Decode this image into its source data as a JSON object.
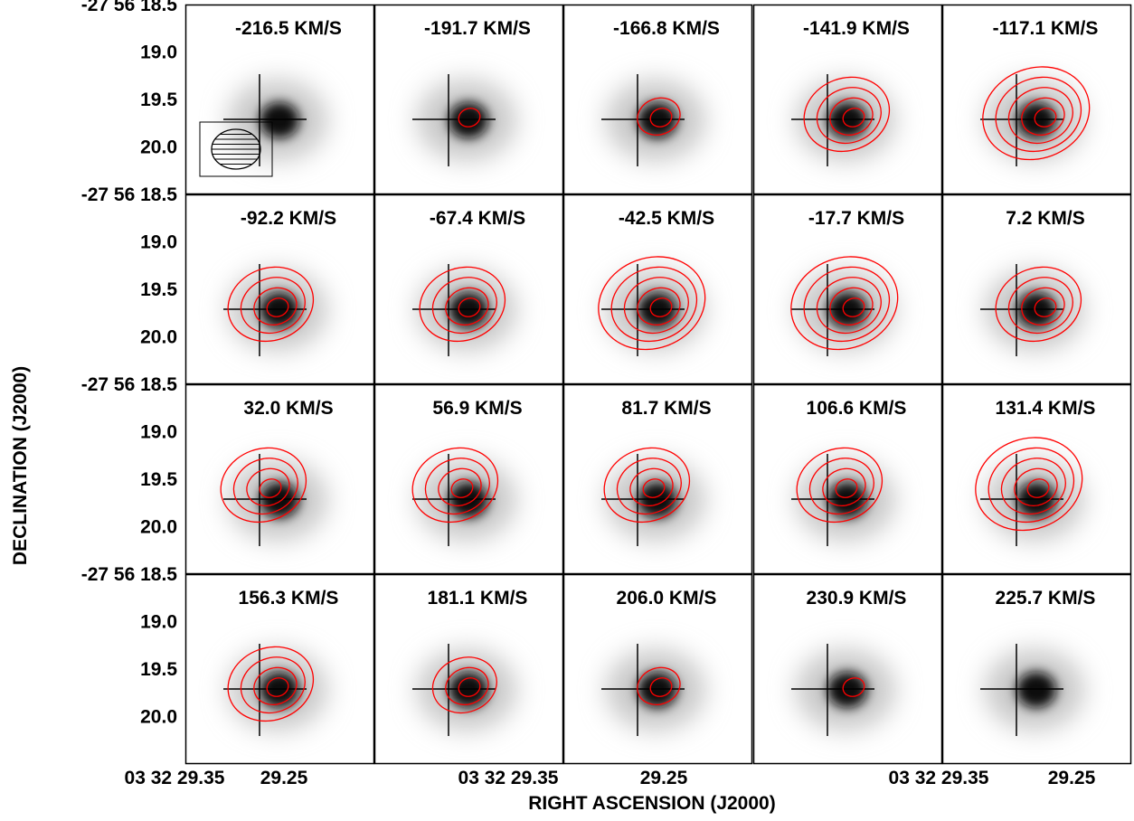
{
  "chart_data": {
    "type": "channel-map",
    "xlabel": "RIGHT ASCENSION (J2000)",
    "ylabel": "DECLINATION (J2000)",
    "x_tick_labels": [
      "03 32 29.35",
      "29.25"
    ],
    "y_tick_labels": [
      "-27 56 18.5",
      "19.0",
      "19.5",
      "20.0"
    ],
    "ylim": [
      18.5,
      20.5
    ],
    "grid": false,
    "velocity_unit": "KM/S",
    "channels": [
      "-216.5 KM/S",
      "-191.7 KM/S",
      "-166.8 KM/S",
      "-141.9 KM/S",
      "-117.1 KM/S",
      "-92.2 KM/S",
      "-67.4 KM/S",
      "-42.5 KM/S",
      "-17.7 KM/S",
      "7.2 KM/S",
      "32.0 KM/S",
      "56.9 KM/S",
      "81.7 KM/S",
      "106.6 KM/S",
      "131.4 KM/S",
      "156.3 KM/S",
      "181.1 KM/S",
      "206.0 KM/S",
      "230.9 KM/S",
      "225.7 KM/S"
    ],
    "contour_levels_per_channel": [
      0,
      1,
      2,
      4,
      5,
      4,
      4,
      5,
      5,
      4,
      4,
      4,
      4,
      4,
      5,
      4,
      3,
      2,
      1,
      0
    ],
    "colors": {
      "contour": "#ff0000",
      "background_map": "grayscale",
      "frame": "#000000"
    }
  }
}
